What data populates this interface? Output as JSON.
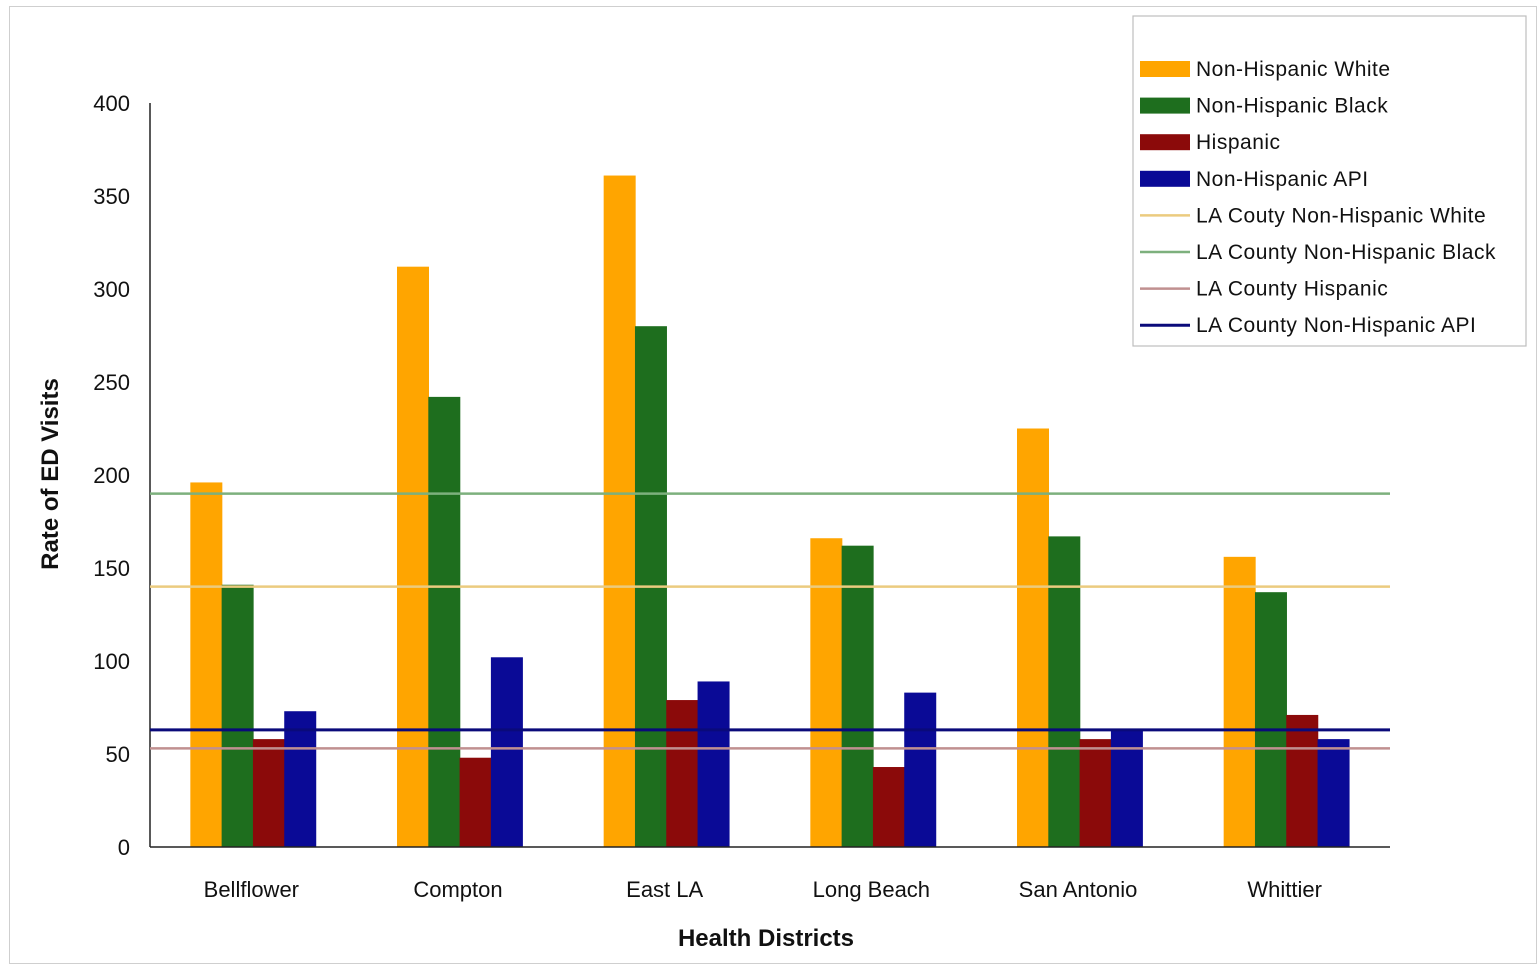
{
  "chart_data": {
    "type": "bar",
    "title": "",
    "xlabel": "Health Districts",
    "ylabel": "Rate of ED Visits",
    "ylim": [
      0,
      400
    ],
    "yticks": [
      0,
      50,
      100,
      150,
      200,
      250,
      300,
      350,
      400
    ],
    "grid": false,
    "legend_position": "top-right",
    "categories": [
      "Bellflower",
      "Compton",
      "East LA",
      "Long Beach",
      "San Antonio",
      "Whittier"
    ],
    "series": [
      {
        "name": "Non-Hispanic White",
        "color": "#FFA500",
        "values": [
          196,
          312,
          361,
          166,
          225,
          156
        ]
      },
      {
        "name": "Non-Hispanic Black",
        "color": "#1E6E1E",
        "values": [
          141,
          242,
          280,
          162,
          167,
          137
        ]
      },
      {
        "name": "Hispanic",
        "color": "#8B0A0A",
        "values": [
          58,
          48,
          79,
          43,
          58,
          71
        ]
      },
      {
        "name": "Non-Hispanic API",
        "color": "#0A0A96",
        "values": [
          73,
          102,
          89,
          83,
          63,
          58
        ]
      }
    ],
    "reference_lines": [
      {
        "name": "LA Couty Non-Hispanic White",
        "color": "#EBCB7F",
        "value": 140
      },
      {
        "name": "LA County Non-Hispanic Black",
        "color": "#7DB07D",
        "value": 190
      },
      {
        "name": "LA County Hispanic",
        "color": "#C09090",
        "value": 53
      },
      {
        "name": "LA County Non-Hispanic API",
        "color": "#0A0A7A",
        "value": 63
      }
    ]
  }
}
